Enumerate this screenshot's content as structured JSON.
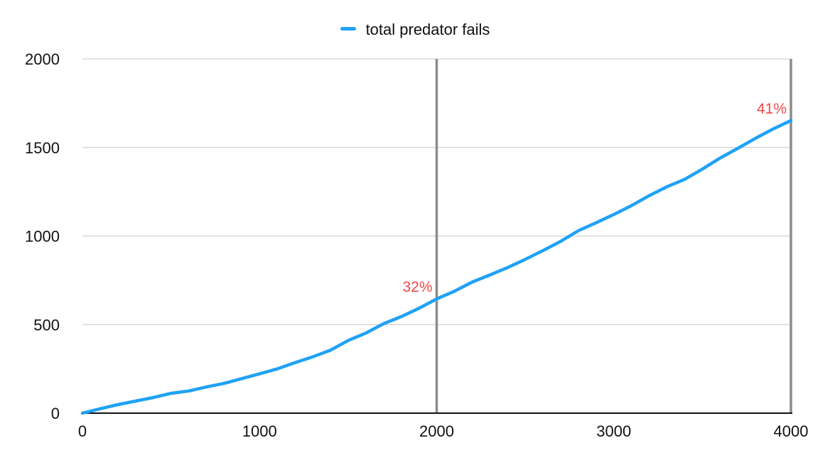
{
  "chart_data": {
    "type": "line",
    "title": "",
    "xlabel": "",
    "ylabel": "",
    "xlim": [
      0,
      4000
    ],
    "ylim": [
      0,
      2000
    ],
    "x_ticks": [
      0,
      1000,
      2000,
      3000,
      4000
    ],
    "y_ticks": [
      0,
      500,
      1000,
      1500,
      2000
    ],
    "grid": "horizontal",
    "legend_position": "top-center",
    "series": [
      {
        "name": "total predator fails",
        "color": "#1fa2f5",
        "x": [
          0,
          100,
          200,
          300,
          400,
          500,
          600,
          700,
          800,
          900,
          1000,
          1100,
          1200,
          1300,
          1400,
          1500,
          1600,
          1700,
          1800,
          1900,
          2000,
          2100,
          2200,
          2300,
          2400,
          2500,
          2600,
          2700,
          2800,
          2900,
          3000,
          3100,
          3200,
          3300,
          3400,
          3500,
          3600,
          3700,
          3800,
          3900,
          4000
        ],
        "y": [
          0,
          25,
          48,
          68,
          88,
          112,
          125,
          148,
          168,
          195,
          222,
          250,
          285,
          318,
          355,
          410,
          452,
          505,
          545,
          592,
          645,
          688,
          740,
          780,
          822,
          868,
          918,
          970,
          1030,
          1075,
          1122,
          1172,
          1228,
          1278,
          1320,
          1378,
          1440,
          1495,
          1552,
          1605,
          1652
        ]
      }
    ],
    "vertical_markers": [
      {
        "x": 2000,
        "label": "32%",
        "y": 645,
        "color": "#f04a4a"
      },
      {
        "x": 4000,
        "label": "41%",
        "y": 1652,
        "color": "#f04a4a"
      }
    ]
  }
}
